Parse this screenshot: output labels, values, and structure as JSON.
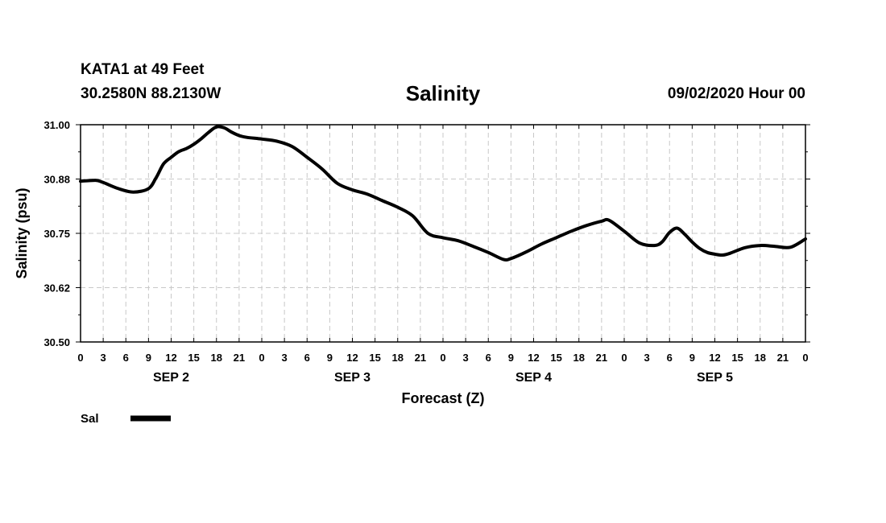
{
  "header": {
    "station": "KATA1 at 49 Feet",
    "coords": "30.2580N 88.2130W",
    "title": "Salinity",
    "timestamp": "09/02/2020 Hour 00"
  },
  "chart_data": {
    "type": "line",
    "title": "Salinity",
    "xlabel": "Forecast (Z)",
    "ylabel": "Salinity (psu)",
    "ylim": [
      30.5,
      31.0
    ],
    "yticks": [
      "31.00",
      "30.88",
      "30.75",
      "30.62",
      "30.50"
    ],
    "ytick_values": [
      31.0,
      30.875,
      30.75,
      30.625,
      30.5
    ],
    "xlim_hours": [
      0,
      96
    ],
    "xticks": [
      "0",
      "3",
      "6",
      "9",
      "12",
      "15",
      "18",
      "21",
      "0",
      "3",
      "6",
      "9",
      "12",
      "15",
      "18",
      "21",
      "0",
      "3",
      "6",
      "9",
      "12",
      "15",
      "18",
      "21",
      "0",
      "3",
      "6",
      "9",
      "12",
      "15",
      "18",
      "21",
      "0"
    ],
    "days": [
      "SEP 2",
      "SEP 3",
      "SEP 4",
      "SEP 5"
    ],
    "grid": true,
    "legend": {
      "label": "Sal",
      "color": "#000000",
      "placement": "bottom-left"
    },
    "series": [
      {
        "name": "Sal",
        "x": [
          0,
          2,
          3,
          5,
          7,
          9,
          10,
          11,
          12,
          13,
          14,
          15,
          16,
          17,
          18,
          19,
          20,
          21,
          22,
          24,
          26,
          28,
          30,
          32,
          34,
          36,
          38,
          40,
          42,
          44,
          46,
          48,
          50,
          52,
          54,
          56,
          57,
          59,
          61,
          63,
          65,
          67,
          69,
          70,
          72,
          74,
          76,
          77,
          78,
          79,
          80,
          81,
          82,
          83,
          84,
          85,
          86,
          88,
          90,
          92,
          94,
          96
        ],
        "values": [
          30.87,
          30.872,
          30.867,
          30.853,
          30.845,
          30.853,
          30.878,
          30.91,
          30.925,
          30.938,
          30.945,
          30.955,
          30.968,
          30.983,
          30.995,
          30.993,
          30.983,
          30.975,
          30.971,
          30.967,
          30.962,
          30.95,
          30.925,
          30.898,
          30.865,
          30.85,
          30.84,
          30.825,
          30.81,
          30.79,
          30.75,
          30.74,
          30.733,
          30.72,
          30.706,
          30.69,
          30.692,
          30.707,
          30.725,
          30.74,
          30.755,
          30.768,
          30.778,
          30.78,
          30.755,
          30.728,
          30.722,
          30.73,
          30.752,
          30.762,
          30.748,
          30.73,
          30.715,
          30.706,
          30.702,
          30.7,
          30.704,
          30.717,
          30.722,
          30.72,
          30.718,
          30.737
        ]
      }
    ]
  }
}
